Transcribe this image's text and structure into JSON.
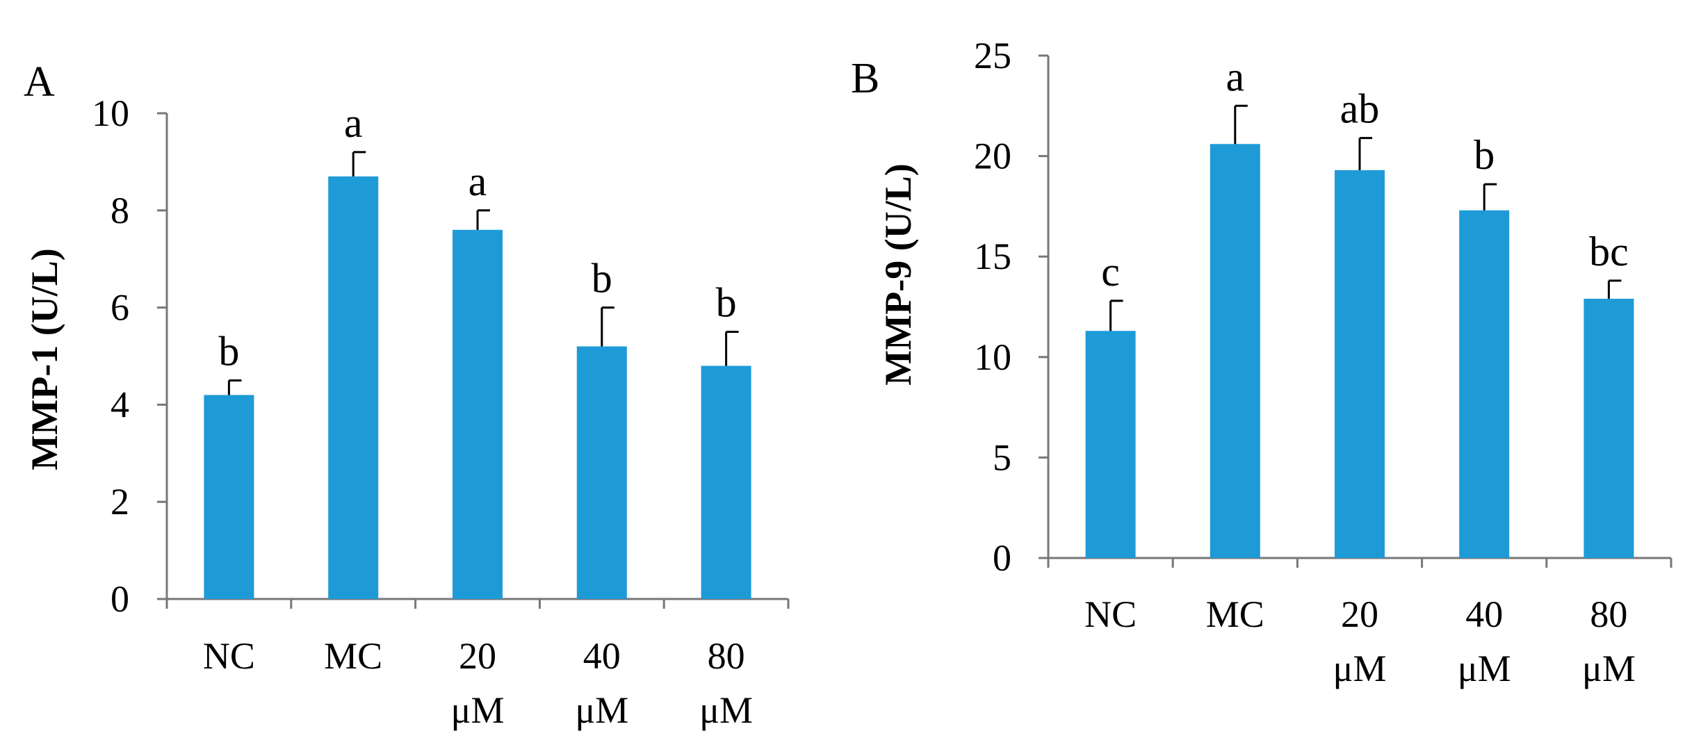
{
  "figure": {
    "bar_color": "#1E9BD7",
    "axis_color": "#777777"
  },
  "chart_data": [
    {
      "type": "bar",
      "panel": "A",
      "title": "",
      "ylabel": "MMP-1 (U/L)",
      "xlabel": "",
      "ylim": [
        0,
        10
      ],
      "yticks": [
        0,
        2,
        4,
        6,
        8,
        10
      ],
      "categories": [
        [
          "NC"
        ],
        [
          "MC"
        ],
        [
          "20",
          "μM"
        ],
        [
          "40",
          "μM"
        ],
        [
          "80",
          "μM"
        ]
      ],
      "values": [
        4.2,
        8.7,
        7.6,
        5.2,
        4.8
      ],
      "error_upper": [
        0.3,
        0.5,
        0.4,
        0.8,
        0.7
      ],
      "significance": [
        "b",
        "a",
        "a",
        "b",
        "b"
      ]
    },
    {
      "type": "bar",
      "panel": "B",
      "title": "",
      "ylabel": "MMP-9 (U/L)",
      "xlabel": "",
      "ylim": [
        0,
        25
      ],
      "yticks": [
        0,
        5,
        10,
        15,
        20,
        25
      ],
      "categories": [
        [
          "NC"
        ],
        [
          "MC"
        ],
        [
          "20",
          "μM"
        ],
        [
          "40",
          "μM"
        ],
        [
          "80",
          "μM"
        ]
      ],
      "values": [
        11.3,
        20.6,
        19.3,
        17.3,
        12.9
      ],
      "error_upper": [
        1.5,
        1.9,
        1.6,
        1.3,
        0.9
      ],
      "significance": [
        "c",
        "a",
        "ab",
        "b",
        "bc"
      ]
    }
  ]
}
